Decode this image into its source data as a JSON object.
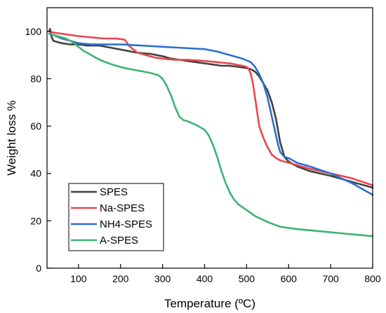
{
  "chart_data": {
    "type": "line",
    "title": "",
    "xlabel": "Temperature (ºC)",
    "ylabel": "Weight loss %",
    "xlim": [
      25,
      800
    ],
    "ylim": [
      0,
      110
    ],
    "xticks": [
      100,
      200,
      300,
      400,
      500,
      600,
      700,
      800
    ],
    "yticks": [
      0,
      20,
      40,
      60,
      80,
      100
    ],
    "legend_position": "bottom-left",
    "grid": false,
    "series": [
      {
        "name": "SPES",
        "color": "#404040",
        "x": [
          30,
          32,
          35,
          40,
          50,
          60,
          80,
          100,
          120,
          150,
          180,
          210,
          240,
          270,
          300,
          320,
          340,
          360,
          380,
          400,
          420,
          440,
          460,
          480,
          500,
          510,
          520,
          530,
          540,
          550,
          560,
          570,
          575,
          580,
          585,
          590,
          600,
          620,
          650,
          700,
          750,
          800
        ],
        "y": [
          100,
          101,
          98,
          96,
          95.5,
          95,
          94.5,
          94.5,
          94,
          94,
          93,
          92,
          91,
          90.5,
          89.5,
          88.5,
          88,
          87.5,
          87,
          86.5,
          86,
          85.5,
          85.5,
          85,
          84.5,
          84,
          83,
          81,
          78,
          75,
          70,
          63,
          58,
          53,
          50,
          47,
          45,
          43,
          41,
          39,
          36.5,
          34
        ]
      },
      {
        "name": "Na-SPES",
        "color": "#e8474c",
        "x": [
          30,
          40,
          60,
          80,
          100,
          130,
          160,
          190,
          210,
          220,
          230,
          240,
          260,
          280,
          300,
          330,
          360,
          400,
          430,
          460,
          490,
          500,
          505,
          510,
          515,
          520,
          525,
          530,
          540,
          550,
          560,
          570,
          580,
          590,
          600,
          620,
          650,
          700,
          750,
          800
        ],
        "y": [
          100,
          99.5,
          99,
          98.5,
          98,
          97.5,
          97,
          97,
          96.5,
          94,
          92.5,
          91,
          90,
          89,
          88.5,
          88,
          88,
          87.5,
          87,
          86.5,
          85.5,
          85,
          84,
          82,
          78,
          72,
          66,
          60,
          55,
          51,
          48,
          46.5,
          45.5,
          45,
          44.5,
          43.5,
          42,
          40,
          38,
          35
        ]
      },
      {
        "name": "NH4-SPES",
        "color": "#2c6fd1",
        "x": [
          30,
          40,
          60,
          80,
          100,
          130,
          160,
          200,
          250,
          300,
          350,
          400,
          430,
          460,
          490,
          510,
          520,
          530,
          540,
          550,
          560,
          570,
          575,
          580,
          585,
          590,
          600,
          620,
          650,
          700,
          750,
          800
        ],
        "y": [
          99,
          98.5,
          97,
          96,
          95,
          94.5,
          94.5,
          94.5,
          94,
          93.5,
          93,
          92.5,
          91.5,
          90,
          88.5,
          87,
          85,
          82,
          78,
          72,
          64,
          56,
          52,
          49,
          48,
          47,
          46.5,
          44.5,
          43,
          40,
          36,
          31
        ]
      },
      {
        "name": "A-SPES",
        "color": "#3cb371",
        "x": [
          30,
          50,
          70,
          90,
          110,
          130,
          150,
          180,
          210,
          240,
          270,
          290,
          300,
          310,
          320,
          330,
          340,
          350,
          360,
          380,
          400,
          410,
          420,
          430,
          440,
          450,
          460,
          470,
          480,
          500,
          520,
          550,
          580,
          620,
          680,
          740,
          800
        ],
        "y": [
          99,
          98,
          97,
          95,
          92,
          90,
          88,
          86,
          84.5,
          83.5,
          82.5,
          81.5,
          80,
          77,
          73,
          68,
          64,
          62.5,
          62,
          60.5,
          58.5,
          56,
          52,
          47,
          41,
          36,
          32,
          29,
          27,
          24.5,
          22,
          19.5,
          17.5,
          16.5,
          15.5,
          14.5,
          13.5
        ]
      }
    ]
  }
}
